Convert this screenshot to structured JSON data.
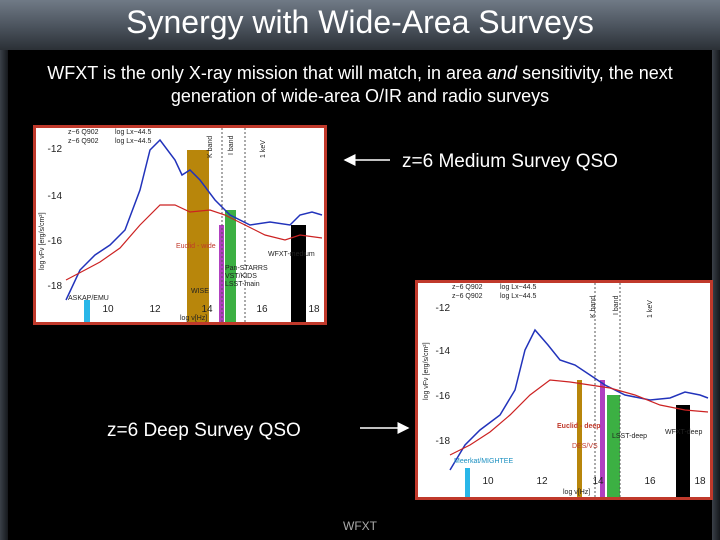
{
  "title": "Synergy with Wide-Area Surveys",
  "subtitle": [
    "WFXT is the only X-ray mission that will match, in area ",
    "and",
    " sensitivity, the next generation of wide-area O/IR and radio surveys"
  ],
  "figures": [
    {
      "caption": "z=6 Medium Survey QSO",
      "legend": [
        "z~6 Q902",
        "log Lx~44.5",
        "z~6 Q902",
        "log Lx~44.5"
      ],
      "band_labels": [
        "K band",
        "I band",
        "1 keV"
      ],
      "survey_labels": [
        "Euclid - wide",
        "Pan-STARRS",
        "VST/KIDS",
        "LSST-main",
        "WISE",
        "WFXT-medium",
        "ASKAP/EMU"
      ],
      "y_label": "log νFν [erg/s/cm²]",
      "x_label": "log ν[Hz]",
      "yticks": [
        "-12",
        "-14",
        "-16",
        "-18"
      ],
      "xticks": [
        "10",
        "12",
        "14",
        "16",
        "18"
      ]
    },
    {
      "caption": "z=6 Deep Survey QSO",
      "legend": [
        "z~6 Q902",
        "log Lx~44.5",
        "z~6 Q902",
        "log Lx~44.5"
      ],
      "band_labels": [
        "K band",
        "I band",
        "1 keV"
      ],
      "survey_labels": [
        "Euclid - deep",
        "LSST-deep",
        "DES/VS",
        "WFXT-deep",
        "Meerkat/MIGHTEE"
      ],
      "y_label": "log νFν [erg/s/cm²]",
      "x_label": "log ν[Hz]",
      "yticks": [
        "-12",
        "-14",
        "-16",
        "-18"
      ],
      "xticks": [
        "10",
        "12",
        "14",
        "16",
        "18"
      ]
    }
  ],
  "footer": "WFXT"
}
